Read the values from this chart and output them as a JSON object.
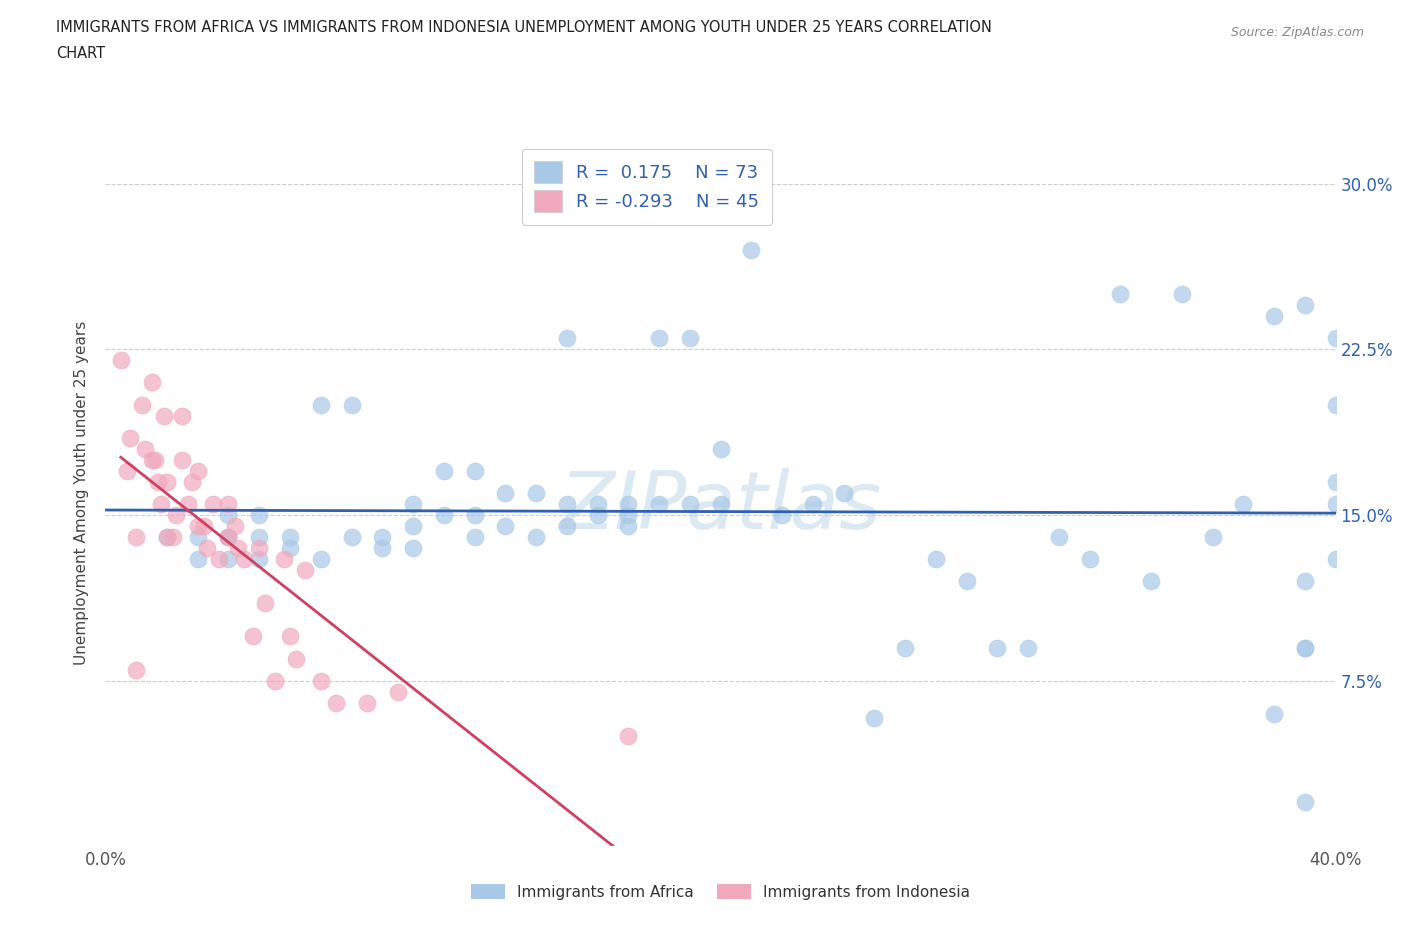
{
  "title_line1": "IMMIGRANTS FROM AFRICA VS IMMIGRANTS FROM INDONESIA UNEMPLOYMENT AMONG YOUTH UNDER 25 YEARS CORRELATION",
  "title_line2": "CHART",
  "source": "Source: ZipAtlas.com",
  "ylabel": "Unemployment Among Youth under 25 years",
  "xlim": [
    0.0,
    0.4
  ],
  "ylim": [
    0.0,
    0.32
  ],
  "ytick_vals": [
    0.0,
    0.075,
    0.15,
    0.225,
    0.3
  ],
  "ytick_labels_right": [
    "",
    "7.5%",
    "15.0%",
    "22.5%",
    "30.0%"
  ],
  "xtick_vals": [
    0.0,
    0.1,
    0.2,
    0.3,
    0.4
  ],
  "xtick_labels": [
    "0.0%",
    "",
    "",
    "",
    "40.0%"
  ],
  "africa_R": "0.175",
  "africa_N": "73",
  "indonesia_R": "-0.293",
  "indonesia_N": "45",
  "africa_dot_color": "#a8c8e8",
  "indonesia_dot_color": "#f0a8bc",
  "africa_line_color": "#3060b0",
  "indonesia_line_color": "#d04060",
  "legend_label_africa": "Immigrants from Africa",
  "legend_label_indonesia": "Immigrants from Indonesia",
  "watermark": "ZIPatlas",
  "africa_x": [
    0.02,
    0.03,
    0.03,
    0.04,
    0.04,
    0.04,
    0.04,
    0.05,
    0.05,
    0.05,
    0.06,
    0.06,
    0.07,
    0.07,
    0.08,
    0.08,
    0.09,
    0.09,
    0.1,
    0.1,
    0.1,
    0.11,
    0.11,
    0.12,
    0.12,
    0.12,
    0.13,
    0.13,
    0.14,
    0.14,
    0.15,
    0.15,
    0.15,
    0.16,
    0.16,
    0.17,
    0.17,
    0.17,
    0.18,
    0.18,
    0.19,
    0.19,
    0.2,
    0.2,
    0.21,
    0.22,
    0.23,
    0.24,
    0.25,
    0.26,
    0.27,
    0.28,
    0.29,
    0.3,
    0.31,
    0.32,
    0.33,
    0.34,
    0.35,
    0.36,
    0.37,
    0.38,
    0.38,
    0.39,
    0.39,
    0.39,
    0.39,
    0.39,
    0.4,
    0.4,
    0.4,
    0.4,
    0.4
  ],
  "africa_y": [
    0.14,
    0.13,
    0.14,
    0.13,
    0.14,
    0.15,
    0.14,
    0.13,
    0.14,
    0.15,
    0.135,
    0.14,
    0.13,
    0.2,
    0.14,
    0.2,
    0.135,
    0.14,
    0.135,
    0.145,
    0.155,
    0.15,
    0.17,
    0.14,
    0.15,
    0.17,
    0.145,
    0.16,
    0.14,
    0.16,
    0.145,
    0.155,
    0.23,
    0.15,
    0.155,
    0.145,
    0.15,
    0.155,
    0.155,
    0.23,
    0.155,
    0.23,
    0.155,
    0.18,
    0.27,
    0.15,
    0.155,
    0.16,
    0.058,
    0.09,
    0.13,
    0.12,
    0.09,
    0.09,
    0.14,
    0.13,
    0.25,
    0.12,
    0.25,
    0.14,
    0.155,
    0.06,
    0.24,
    0.02,
    0.09,
    0.12,
    0.09,
    0.245,
    0.13,
    0.155,
    0.165,
    0.23,
    0.2
  ],
  "indonesia_x": [
    0.005,
    0.007,
    0.008,
    0.01,
    0.01,
    0.012,
    0.013,
    0.015,
    0.015,
    0.016,
    0.017,
    0.018,
    0.019,
    0.02,
    0.02,
    0.022,
    0.023,
    0.025,
    0.025,
    0.027,
    0.028,
    0.03,
    0.03,
    0.032,
    0.033,
    0.035,
    0.037,
    0.04,
    0.04,
    0.042,
    0.043,
    0.045,
    0.048,
    0.05,
    0.052,
    0.055,
    0.058,
    0.06,
    0.062,
    0.065,
    0.07,
    0.075,
    0.085,
    0.095,
    0.17
  ],
  "indonesia_y": [
    0.22,
    0.17,
    0.185,
    0.14,
    0.08,
    0.2,
    0.18,
    0.175,
    0.21,
    0.175,
    0.165,
    0.155,
    0.195,
    0.14,
    0.165,
    0.14,
    0.15,
    0.175,
    0.195,
    0.155,
    0.165,
    0.145,
    0.17,
    0.145,
    0.135,
    0.155,
    0.13,
    0.155,
    0.14,
    0.145,
    0.135,
    0.13,
    0.095,
    0.135,
    0.11,
    0.075,
    0.13,
    0.095,
    0.085,
    0.125,
    0.075,
    0.065,
    0.065,
    0.07,
    0.05
  ]
}
